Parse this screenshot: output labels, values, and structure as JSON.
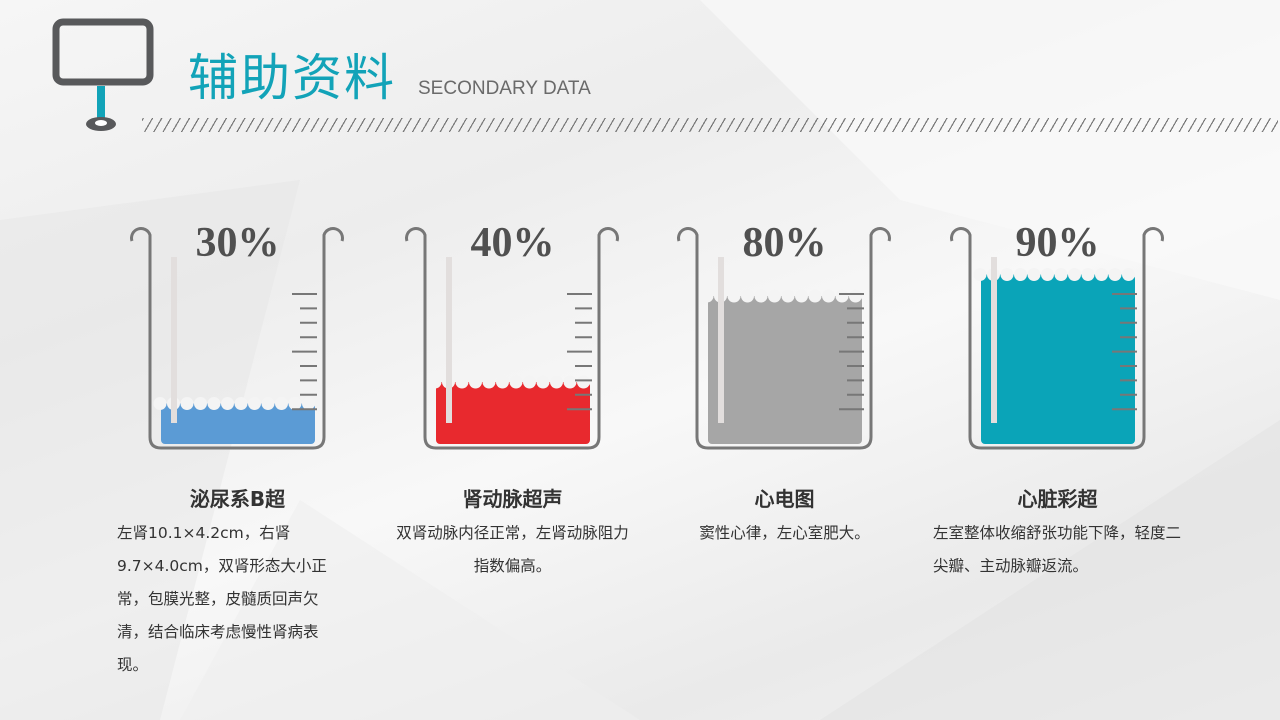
{
  "header": {
    "title": "辅助资料",
    "subtitle": "SECONDARY DATA",
    "icon": "signboard-icon",
    "accent": "#12a3b8"
  },
  "items": [
    {
      "name": "泌尿系B超",
      "percent": 30,
      "percent_label": "30%",
      "color": "#5b9bd5",
      "description": "左肾10.1×4.2cm，右肾9.7×4.0cm，双肾形态大小正常，包膜光整，皮髓质回声欠清，结合临床考虑慢性肾病表现。",
      "align": "left"
    },
    {
      "name": "肾动脉超声",
      "percent": 40,
      "percent_label": "40%",
      "color": "#e8292e",
      "description": "双肾动脉内径正常，左肾动脉阻力指数偏高。",
      "align": "center"
    },
    {
      "name": "心电图",
      "percent": 80,
      "percent_label": "80%",
      "color": "#a6a6a6",
      "description": "窦性心律，左心室肥大。",
      "align": "center"
    },
    {
      "name": "心脏彩超",
      "percent": 90,
      "percent_label": "90%",
      "color": "#0aa4b8",
      "description": "左室整体收缩舒张功能下降，轻度二尖瓣、主动脉瓣返流。",
      "align": "left"
    }
  ]
}
